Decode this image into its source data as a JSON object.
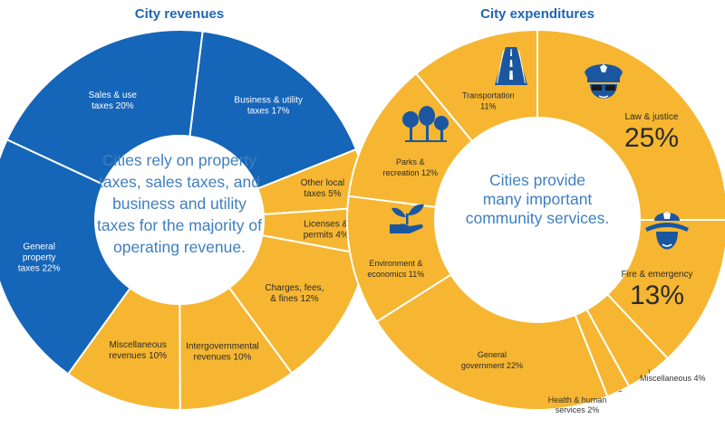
{
  "colors": {
    "revenue": "#1565b8",
    "expenditure": "#f6b631",
    "stroke": "#ffffff",
    "title": "#1f66b5",
    "center_text": "#3f7fc0",
    "icon_fill": "#1a57a0"
  },
  "chart_data": [
    {
      "type": "pie",
      "title": "City revenues",
      "center_text": [
        "Cities rely on property",
        "taxes, sales taxes, and",
        "business and utility",
        "taxes for the majority of",
        "operating revenue."
      ],
      "slices": [
        {
          "key": "business-utility",
          "label_lines": [
            "Business & utility",
            "taxes 17%"
          ],
          "value": 17,
          "color": "#1565b8"
        },
        {
          "key": "other-local",
          "label_lines": [
            "Other local",
            "taxes 5%"
          ],
          "value": 5,
          "color": "#f6b631"
        },
        {
          "key": "licenses-permits",
          "label_lines": [
            "Licenses &",
            "permits 4%"
          ],
          "value": 4,
          "color": "#f6b631"
        },
        {
          "key": "charges-fees-fines",
          "label_lines": [
            "Charges, fees,",
            "& fines 12%"
          ],
          "value": 12,
          "color": "#f6b631"
        },
        {
          "key": "intergovernmental",
          "label_lines": [
            "Intergovernmental",
            "revenues 10%"
          ],
          "value": 10,
          "color": "#f6b631"
        },
        {
          "key": "miscellaneous",
          "label_lines": [
            "Miscellaneous",
            "revenues 10%"
          ],
          "value": 10,
          "color": "#f6b631"
        },
        {
          "key": "general-property",
          "label_lines": [
            "General",
            "property",
            "taxes 22%"
          ],
          "value": 22,
          "color": "#1565b8"
        },
        {
          "key": "sales-use",
          "label_lines": [
            "Sales & use",
            "taxes 20%"
          ],
          "value": 20,
          "color": "#1565b8"
        }
      ]
    },
    {
      "type": "pie",
      "title": "City expenditures",
      "center_text": [
        "Cities provide",
        "many important",
        "community services."
      ],
      "slices": [
        {
          "key": "law-justice",
          "label_lines": [
            "Law & justice"
          ],
          "big_value": "25%",
          "value": 25,
          "color": "#f6b631",
          "icon": "police-officer-icon"
        },
        {
          "key": "fire-emergency",
          "label_lines": [
            "Fire & emergency"
          ],
          "big_value": "13%",
          "value": 13,
          "color": "#f6b631",
          "icon": "firefighter-icon"
        },
        {
          "key": "miscellaneous",
          "label_lines": [
            "Miscellaneous 4%"
          ],
          "value": 4,
          "color": "#f6b631",
          "outside": true
        },
        {
          "key": "health-human",
          "label_lines": [
            "Health & human",
            "services 2%"
          ],
          "value": 2,
          "color": "#f6b631",
          "outside": true
        },
        {
          "key": "general-government",
          "label_lines": [
            "General",
            "government 22%"
          ],
          "value": 22,
          "color": "#f6b631"
        },
        {
          "key": "environment-economics",
          "label_lines": [
            "Environment &",
            "economics 11%"
          ],
          "value": 11,
          "color": "#f6b631",
          "icon": "plant-hand-icon"
        },
        {
          "key": "parks-recreation",
          "label_lines": [
            "Parks &",
            "recreation 12%"
          ],
          "value": 12,
          "color": "#f6b631",
          "icon": "trees-icon"
        },
        {
          "key": "transportation",
          "label_lines": [
            "Transportation",
            "11%"
          ],
          "value": 11,
          "color": "#f6b631",
          "icon": "road-icon"
        }
      ]
    }
  ]
}
